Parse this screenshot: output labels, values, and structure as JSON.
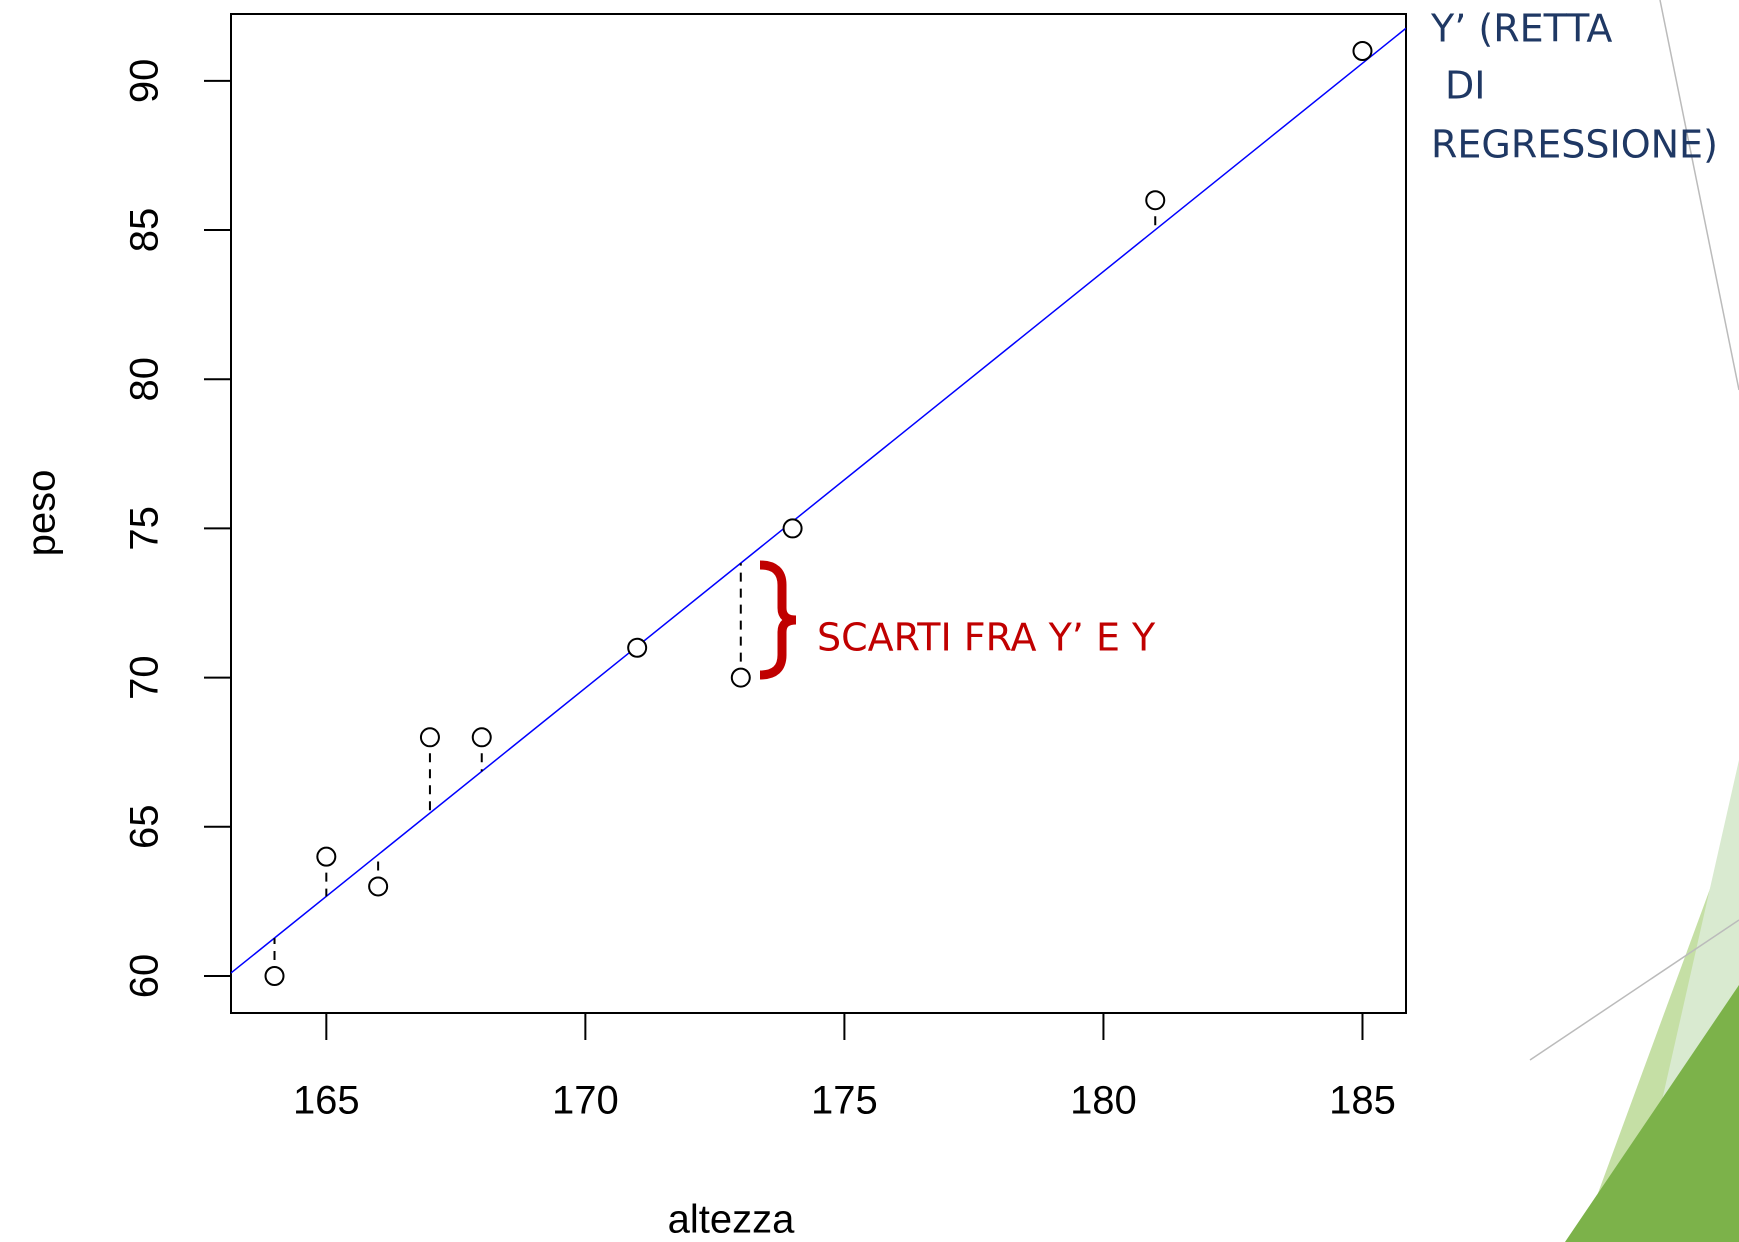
{
  "chart_data": {
    "type": "scatter",
    "x_label": "altezza",
    "y_label": "peso",
    "x": [
      164,
      165,
      166,
      167,
      168,
      171,
      173,
      174,
      181,
      185
    ],
    "values": [
      60,
      64,
      63,
      68,
      68,
      71,
      70,
      75,
      86,
      91
    ],
    "xlim": [
      163.16,
      185.84
    ],
    "ylim": [
      58.76,
      92.24
    ],
    "xticks": [
      165,
      170,
      175,
      180,
      185
    ],
    "yticks": [
      60,
      65,
      70,
      75,
      80,
      85,
      90
    ],
    "fit": {
      "slope": 1.396,
      "intercept": -167.67,
      "color": "#0000ff"
    },
    "annotations": {
      "line_label": [
        "Y’ (RETTA",
        "DI",
        "REGRESSIONE)"
      ],
      "residual_label": "SCARTI FRA Y’ E Y"
    }
  }
}
